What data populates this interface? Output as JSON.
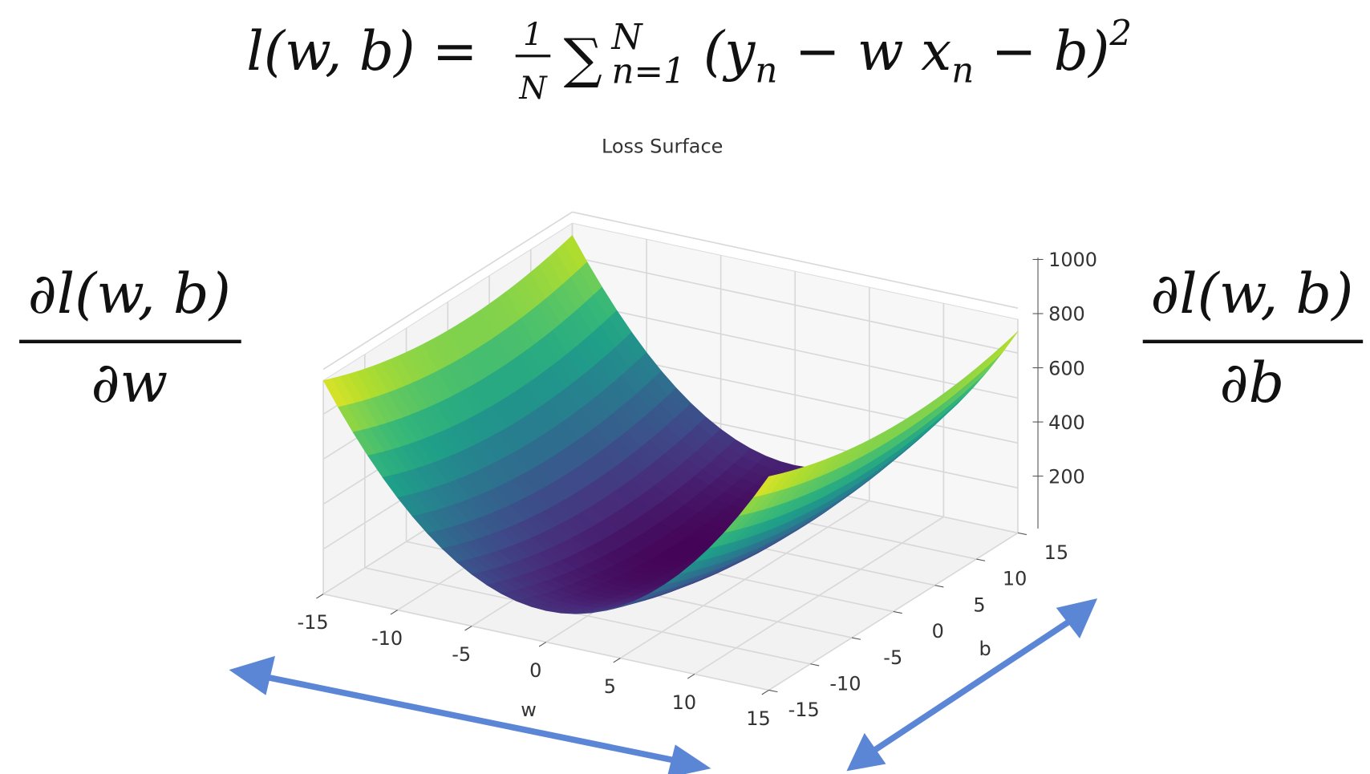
{
  "equation": {
    "lhs": "l(w, b) =",
    "frac_num": "1",
    "frac_den": "N",
    "sum": "∑",
    "sum_upper": "N",
    "sum_lower": "n=1",
    "body": [
      "(y",
      "n",
      " − w x",
      "n",
      " − b)",
      "2"
    ]
  },
  "partial_w": {
    "numerator": "∂l(w, b)",
    "denominator": "∂w"
  },
  "partial_b": {
    "numerator": "∂l(w, b)",
    "denominator": "∂b"
  },
  "plot": {
    "title": "Loss Surface",
    "x_label": "w",
    "y_label": "b",
    "x_ticks": [
      -15,
      -10,
      -5,
      0,
      5,
      10,
      15
    ],
    "y_ticks": [
      -15,
      -10,
      -5,
      0,
      5,
      10,
      15
    ],
    "z_ticks": [
      200,
      400,
      600,
      800,
      1000
    ]
  }
}
